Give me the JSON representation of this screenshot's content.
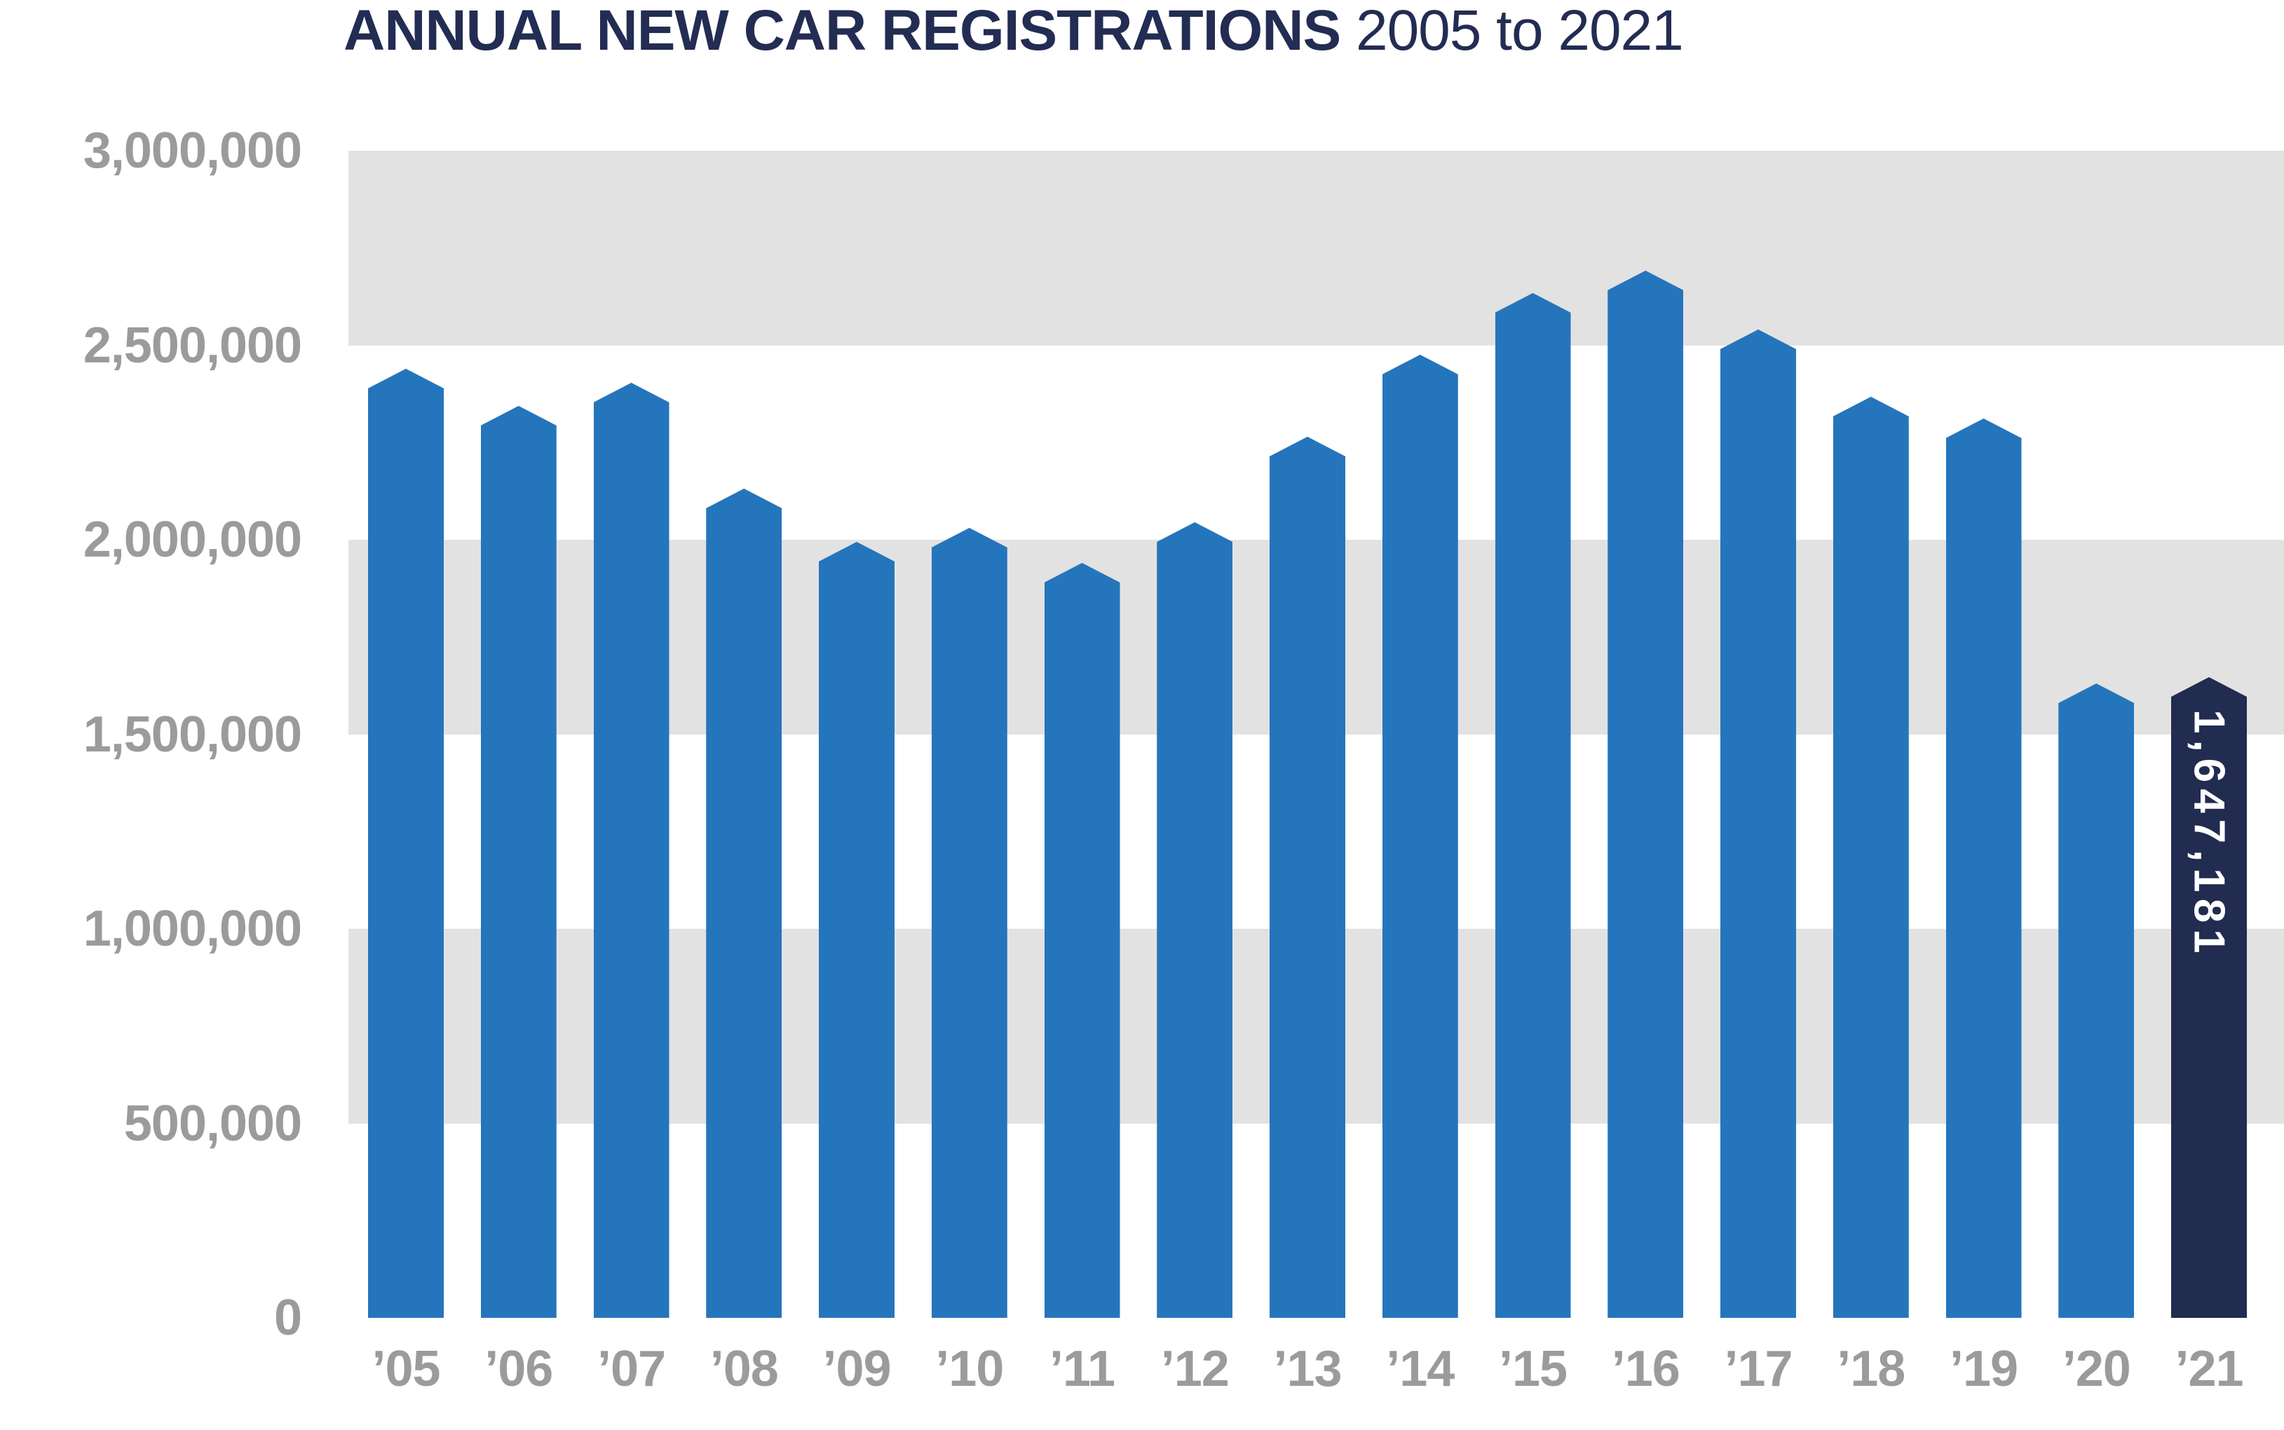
{
  "title": {
    "main": "ANNUAL NEW CAR REGISTRATIONS",
    "suffix": " 2005 to 2021"
  },
  "y_axis": {
    "tick_labels": [
      "3,000,000",
      "2,500,000",
      "2,000,000",
      "1,500,000",
      "1,000,000",
      "500,000",
      "0"
    ]
  },
  "chart_data": {
    "type": "bar",
    "title": "ANNUAL NEW CAR REGISTRATIONS 2005 to 2021",
    "categories": [
      "’05",
      "’06",
      "’07",
      "’08",
      "’09",
      "’10",
      "’11",
      "’12",
      "’13",
      "’14",
      "’15",
      "’16",
      "’17",
      "’18",
      "’19",
      "’20",
      "’21"
    ],
    "values": [
      2439717,
      2344864,
      2404007,
      2131795,
      1994999,
      2030846,
      1941253,
      2044609,
      2264737,
      2476435,
      2633503,
      2692786,
      2540617,
      2367147,
      2311140,
      1631064,
      1647181
    ],
    "xlabel": "",
    "ylabel": "",
    "ylim": [
      0,
      3000000
    ],
    "ytick_interval": 500000,
    "legend_position": "none",
    "grid": "alternating horizontal gray bands between 2.5M-3M, 1.5M-2M, 0.5M-1M",
    "bar_top_style": "pointed pentagon cap",
    "highlight": {
      "category": "’21",
      "label": "1,647,181"
    },
    "colors": {
      "bar": "#2575BC",
      "highlight_bar": "#222B50",
      "band": "#E3E2E2",
      "axis_labels": "#9B9B9B",
      "title": "#232C52",
      "highlight_label": "#FFFFFF"
    }
  }
}
